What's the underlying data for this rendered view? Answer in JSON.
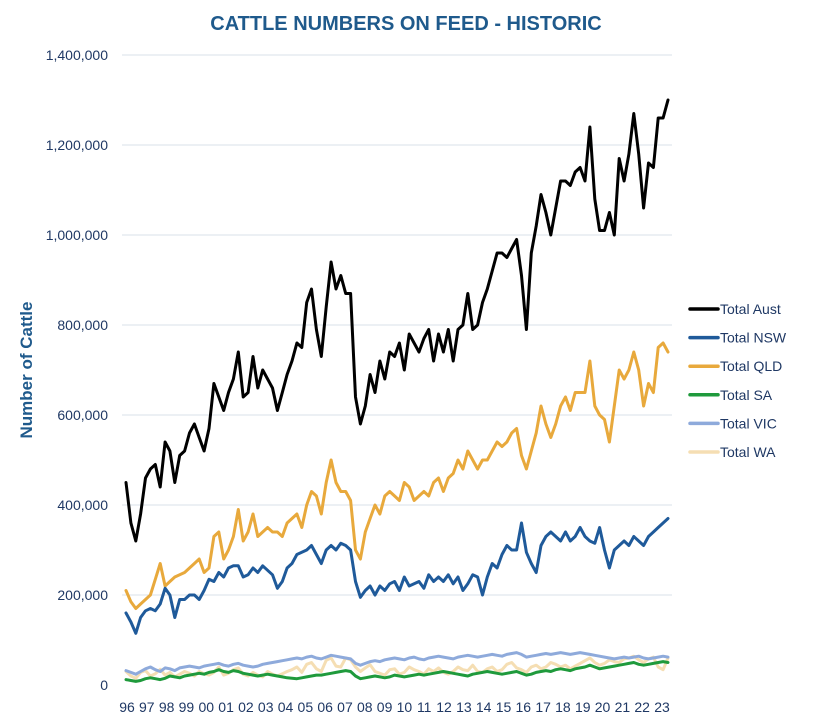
{
  "chart_data": {
    "type": "line",
    "title": "CATTLE NUMBERS ON FEED - HISTORIC",
    "ylabel": "Number of Cattle",
    "xlabel": "",
    "ylim": [
      0,
      1400000
    ],
    "y_ticks": [
      0,
      200000,
      400000,
      600000,
      800000,
      1000000,
      1200000,
      1400000
    ],
    "y_tick_labels": [
      "0",
      "200,000",
      "400,000",
      "600,000",
      "800,000",
      "1,000,000",
      "1,200,000",
      "1,400,000"
    ],
    "x_tick_labels": [
      "96",
      "97",
      "98",
      "99",
      "00",
      "01",
      "02",
      "03",
      "04",
      "05",
      "06",
      "07",
      "08",
      "09",
      "10",
      "11",
      "12",
      "13",
      "14",
      "15",
      "16",
      "17",
      "18",
      "19",
      "20",
      "21",
      "22",
      "23"
    ],
    "grid": "horizontal",
    "legend_position": "right",
    "colors": {
      "title": "#1f5a8c",
      "axis_text": "#1f3864",
      "grid": "#d9e2ea"
    },
    "series": [
      {
        "name": "Total Aust",
        "color": "#000000",
        "values": [
          450000,
          360000,
          320000,
          380000,
          460000,
          480000,
          490000,
          440000,
          540000,
          520000,
          450000,
          510000,
          520000,
          560000,
          580000,
          550000,
          520000,
          570000,
          670000,
          640000,
          610000,
          650000,
          680000,
          740000,
          640000,
          650000,
          730000,
          660000,
          700000,
          680000,
          660000,
          610000,
          650000,
          690000,
          720000,
          760000,
          750000,
          850000,
          880000,
          790000,
          730000,
          840000,
          940000,
          880000,
          910000,
          870000,
          870000,
          640000,
          580000,
          620000,
          690000,
          650000,
          720000,
          680000,
          740000,
          730000,
          760000,
          700000,
          780000,
          760000,
          740000,
          770000,
          790000,
          720000,
          780000,
          740000,
          790000,
          720000,
          790000,
          800000,
          870000,
          790000,
          800000,
          850000,
          880000,
          920000,
          960000,
          960000,
          950000,
          970000,
          990000,
          910000,
          790000,
          960000,
          1020000,
          1090000,
          1050000,
          1000000,
          1060000,
          1120000,
          1120000,
          1110000,
          1140000,
          1150000,
          1120000,
          1240000,
          1080000,
          1010000,
          1010000,
          1050000,
          1000000,
          1170000,
          1120000,
          1180000,
          1270000,
          1180000,
          1060000,
          1160000,
          1150000,
          1260000,
          1260000,
          1300000
        ]
      },
      {
        "name": "Total NSW",
        "color": "#1f5a9a",
        "values": [
          160000,
          140000,
          115000,
          150000,
          165000,
          170000,
          165000,
          180000,
          215000,
          200000,
          150000,
          190000,
          190000,
          200000,
          200000,
          190000,
          210000,
          235000,
          230000,
          250000,
          240000,
          260000,
          265000,
          265000,
          240000,
          245000,
          260000,
          250000,
          265000,
          255000,
          245000,
          215000,
          230000,
          260000,
          270000,
          290000,
          295000,
          300000,
          310000,
          290000,
          270000,
          300000,
          310000,
          300000,
          315000,
          310000,
          300000,
          230000,
          195000,
          210000,
          220000,
          200000,
          220000,
          210000,
          225000,
          230000,
          210000,
          240000,
          220000,
          225000,
          230000,
          215000,
          245000,
          230000,
          240000,
          230000,
          245000,
          225000,
          240000,
          210000,
          225000,
          245000,
          240000,
          200000,
          240000,
          270000,
          260000,
          290000,
          310000,
          300000,
          300000,
          360000,
          295000,
          270000,
          250000,
          310000,
          330000,
          340000,
          330000,
          320000,
          340000,
          320000,
          330000,
          350000,
          330000,
          320000,
          315000,
          350000,
          300000,
          260000,
          300000,
          310000,
          320000,
          310000,
          330000,
          320000,
          310000,
          330000,
          340000,
          350000,
          360000,
          370000
        ]
      },
      {
        "name": "Total QLD",
        "color": "#e8a93c",
        "values": [
          210000,
          185000,
          170000,
          180000,
          190000,
          200000,
          235000,
          270000,
          220000,
          230000,
          240000,
          245000,
          250000,
          260000,
          270000,
          280000,
          250000,
          260000,
          330000,
          340000,
          280000,
          300000,
          330000,
          390000,
          320000,
          340000,
          380000,
          330000,
          340000,
          350000,
          340000,
          340000,
          330000,
          360000,
          370000,
          380000,
          350000,
          400000,
          430000,
          420000,
          380000,
          450000,
          500000,
          450000,
          430000,
          430000,
          410000,
          300000,
          280000,
          340000,
          370000,
          400000,
          380000,
          420000,
          430000,
          420000,
          410000,
          450000,
          440000,
          410000,
          420000,
          430000,
          420000,
          450000,
          460000,
          430000,
          460000,
          470000,
          500000,
          480000,
          520000,
          500000,
          480000,
          500000,
          500000,
          520000,
          540000,
          530000,
          540000,
          560000,
          570000,
          510000,
          480000,
          520000,
          560000,
          620000,
          580000,
          550000,
          580000,
          620000,
          640000,
          610000,
          650000,
          650000,
          650000,
          720000,
          620000,
          600000,
          590000,
          540000,
          620000,
          700000,
          680000,
          700000,
          740000,
          700000,
          620000,
          670000,
          650000,
          750000,
          760000,
          740000
        ]
      },
      {
        "name": "Total SA",
        "color": "#1f9a3c",
        "values": [
          12000,
          10000,
          8000,
          10000,
          14000,
          16000,
          14000,
          12000,
          15000,
          20000,
          18000,
          16000,
          20000,
          22000,
          24000,
          26000,
          24000,
          28000,
          30000,
          34000,
          30000,
          28000,
          32000,
          30000,
          26000,
          24000,
          22000,
          20000,
          22000,
          24000,
          22000,
          20000,
          18000,
          16000,
          15000,
          14000,
          16000,
          18000,
          20000,
          22000,
          22000,
          24000,
          26000,
          28000,
          30000,
          32000,
          30000,
          20000,
          14000,
          16000,
          18000,
          20000,
          18000,
          16000,
          18000,
          22000,
          20000,
          18000,
          20000,
          22000,
          24000,
          22000,
          24000,
          26000,
          28000,
          30000,
          28000,
          26000,
          24000,
          22000,
          20000,
          24000,
          26000,
          28000,
          30000,
          28000,
          26000,
          24000,
          26000,
          28000,
          30000,
          26000,
          22000,
          24000,
          28000,
          30000,
          32000,
          30000,
          34000,
          36000,
          34000,
          32000,
          36000,
          38000,
          40000,
          44000,
          40000,
          36000,
          38000,
          40000,
          42000,
          44000,
          46000,
          48000,
          50000,
          46000,
          44000,
          46000,
          48000,
          50000,
          52000,
          50000
        ]
      },
      {
        "name": "Total VIC",
        "color": "#8eaadb",
        "values": [
          32000,
          28000,
          24000,
          30000,
          36000,
          40000,
          34000,
          30000,
          38000,
          36000,
          32000,
          38000,
          40000,
          42000,
          40000,
          38000,
          42000,
          44000,
          46000,
          48000,
          44000,
          42000,
          46000,
          48000,
          44000,
          42000,
          40000,
          42000,
          46000,
          48000,
          50000,
          52000,
          54000,
          56000,
          58000,
          60000,
          58000,
          62000,
          64000,
          60000,
          58000,
          62000,
          66000,
          64000,
          62000,
          60000,
          58000,
          48000,
          44000,
          48000,
          52000,
          54000,
          52000,
          56000,
          58000,
          60000,
          58000,
          56000,
          60000,
          62000,
          58000,
          56000,
          60000,
          62000,
          64000,
          62000,
          60000,
          58000,
          62000,
          64000,
          66000,
          64000,
          62000,
          64000,
          66000,
          68000,
          66000,
          64000,
          68000,
          70000,
          72000,
          68000,
          62000,
          64000,
          66000,
          68000,
          70000,
          68000,
          70000,
          72000,
          70000,
          68000,
          70000,
          72000,
          70000,
          68000,
          66000,
          64000,
          62000,
          60000,
          58000,
          60000,
          62000,
          60000,
          62000,
          64000,
          60000,
          58000,
          60000,
          62000,
          64000,
          62000
        ]
      },
      {
        "name": "Total WA",
        "color": "#f5deb3",
        "values": [
          30000,
          20000,
          15000,
          28000,
          32000,
          20000,
          25000,
          35000,
          22000,
          28000,
          18000,
          24000,
          30000,
          26000,
          20000,
          30000,
          25000,
          22000,
          28000,
          40000,
          22000,
          26000,
          34000,
          38000,
          24000,
          20000,
          28000,
          22000,
          18000,
          30000,
          24000,
          20000,
          25000,
          30000,
          34000,
          40000,
          28000,
          46000,
          50000,
          36000,
          30000,
          55000,
          60000,
          42000,
          40000,
          60000,
          56000,
          40000,
          30000,
          38000,
          45000,
          30000,
          26000,
          22000,
          34000,
          36000,
          24000,
          28000,
          40000,
          34000,
          30000,
          24000,
          36000,
          30000,
          38000,
          28000,
          24000,
          30000,
          40000,
          34000,
          32000,
          44000,
          30000,
          28000,
          36000,
          40000,
          30000,
          34000,
          46000,
          50000,
          38000,
          34000,
          28000,
          40000,
          44000,
          36000,
          40000,
          50000,
          46000,
          40000,
          44000,
          36000,
          42000,
          48000,
          54000,
          60000,
          50000,
          44000,
          48000,
          56000,
          52000,
          50000,
          58000,
          60000,
          64000,
          56000,
          50000,
          58000,
          62000,
          40000,
          34000,
          60000
        ]
      }
    ]
  }
}
